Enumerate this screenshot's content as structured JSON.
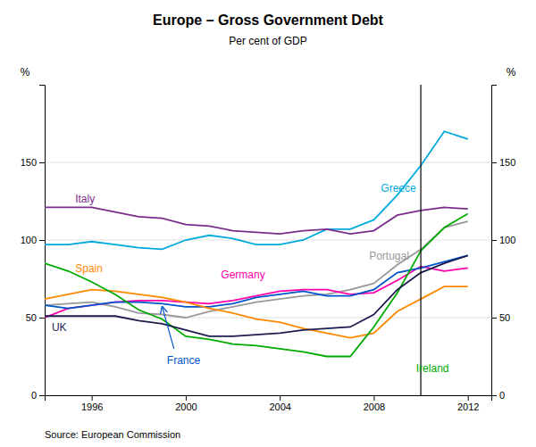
{
  "chart_data": {
    "type": "line",
    "title": "Europe – Gross Government Debt",
    "subtitle": "Per cent of GDP",
    "source": "Source: European Commission",
    "ylabel": "%",
    "y2label": "%",
    "x": [
      1994,
      1995,
      1996,
      1997,
      1998,
      1999,
      2000,
      2001,
      2002,
      2003,
      2004,
      2005,
      2006,
      2007,
      2008,
      2009,
      2010,
      2011,
      2012
    ],
    "xlim": [
      1994,
      2013
    ],
    "xticks": [
      1996,
      2000,
      2004,
      2008,
      2012
    ],
    "ylim": [
      0,
      200
    ],
    "yticks": [
      0,
      50,
      100,
      150
    ],
    "y2lim": [
      0,
      200
    ],
    "y2ticks": [
      0,
      50,
      100,
      150
    ],
    "grid": true,
    "vertical_line": 2010,
    "series": [
      {
        "name": "Greece",
        "color": "#00AADD",
        "values": [
          97,
          97,
          99,
          97,
          95,
          94,
          100,
          103,
          101,
          97,
          97,
          100,
          107,
          107,
          113,
          129,
          148,
          170,
          165
        ]
      },
      {
        "name": "Italy",
        "color": "#7B2D8B",
        "values": [
          121,
          121,
          121,
          118,
          115,
          114,
          110,
          109,
          106,
          105,
          104,
          106,
          107,
          104,
          106,
          116,
          119,
          121,
          120
        ]
      },
      {
        "name": "Portugal",
        "color": "#999999",
        "values": [
          58,
          59,
          60,
          57,
          53,
          52,
          50,
          54,
          57,
          60,
          62,
          64,
          65,
          68,
          72,
          84,
          94,
          108,
          112
        ]
      },
      {
        "name": "Germany",
        "color": "#FF00AA",
        "values": [
          50,
          56,
          58,
          60,
          61,
          61,
          60,
          59,
          61,
          64,
          67,
          68,
          68,
          65,
          66,
          74,
          83,
          80,
          82
        ]
      },
      {
        "name": "France",
        "color": "#0055CC",
        "values": [
          58,
          56,
          58,
          60,
          60,
          59,
          57,
          57,
          59,
          63,
          65,
          67,
          64,
          64,
          68,
          79,
          82,
          86,
          90
        ]
      },
      {
        "name": "Spain",
        "color": "#FF8800",
        "values": [
          62,
          65,
          68,
          67,
          65,
          63,
          60,
          56,
          53,
          49,
          47,
          43,
          40,
          37,
          40,
          54,
          62,
          70,
          70
        ]
      },
      {
        "name": "Ireland",
        "color": "#00AA00",
        "values": [
          85,
          80,
          73,
          65,
          55,
          49,
          38,
          36,
          33,
          32,
          30,
          28,
          25,
          25,
          44,
          66,
          93,
          108,
          117
        ]
      },
      {
        "name": "UK",
        "color": "#1C1C50",
        "values": [
          51,
          51,
          51,
          51,
          48,
          46,
          42,
          38,
          38,
          39,
          40,
          42,
          43,
          44,
          52,
          68,
          79,
          85,
          90
        ]
      }
    ],
    "annotations": [
      {
        "text": "Greece",
        "x": 2008.3,
        "y": 133,
        "color": "#00AADD"
      },
      {
        "text": "Italy",
        "x": 1995.3,
        "y": 126,
        "color": "#7B2D8B"
      },
      {
        "text": "Portugal",
        "x": 2007.8,
        "y": 89,
        "color": "#999999"
      },
      {
        "text": "Germany",
        "x": 2001.5,
        "y": 77,
        "color": "#FF00AA"
      },
      {
        "text": "France",
        "x": 1999.2,
        "y": 22,
        "color": "#0055CC",
        "arrow_from_x": 1999.5,
        "arrow_from_y": 30,
        "arrow_x": 1999.0,
        "arrow_y": 57
      },
      {
        "text": "Spain",
        "x": 1995.3,
        "y": 81,
        "color": "#FF8800"
      },
      {
        "text": "Ireland",
        "x": 2009.8,
        "y": 17,
        "color": "#00AA00"
      },
      {
        "text": "UK",
        "x": 1994.3,
        "y": 43,
        "color": "#1C1C50"
      }
    ]
  }
}
